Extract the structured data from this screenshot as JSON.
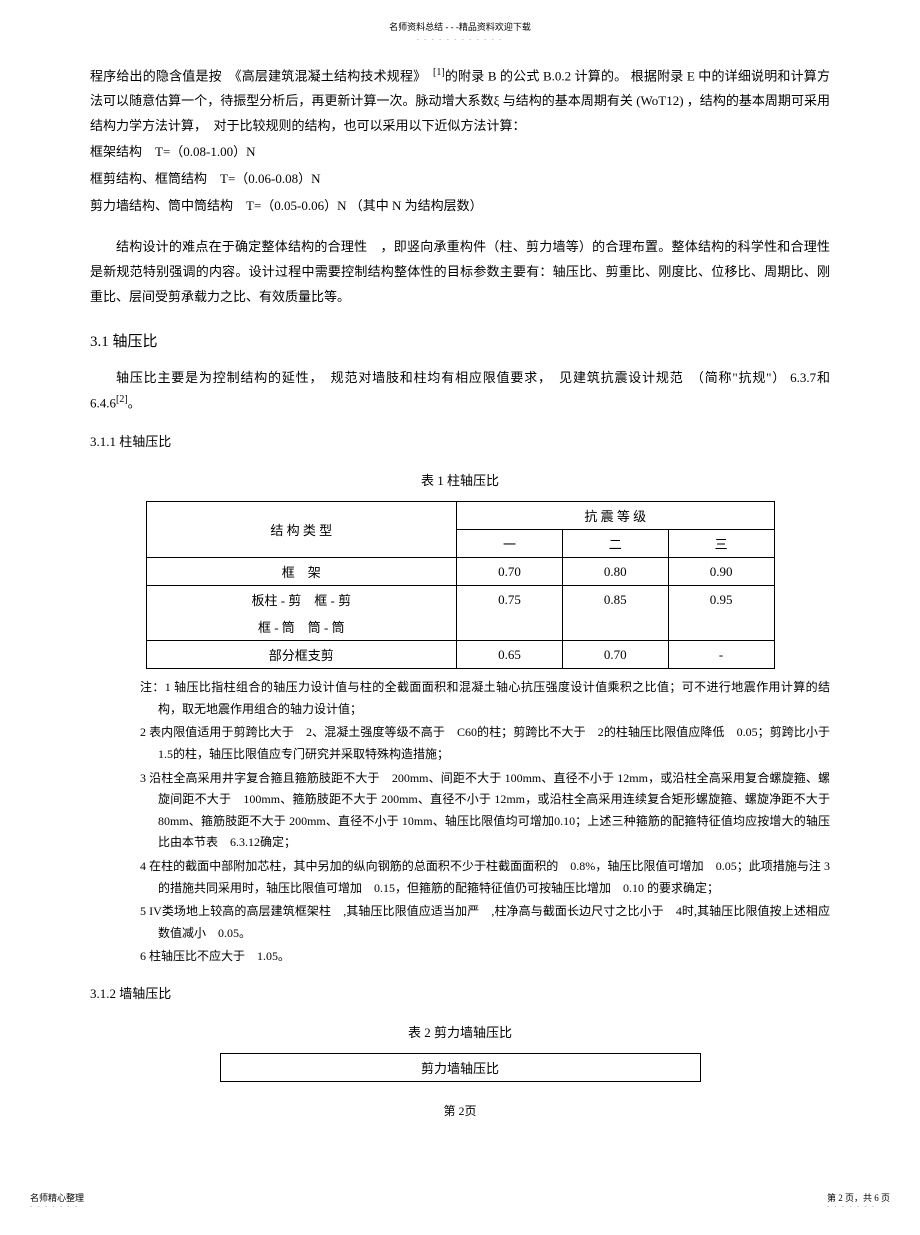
{
  "header": {
    "note": "名师资料总结 - - -精品资料欢迎下载",
    "dots": "- - - - - - - - - - - -"
  },
  "para1": "程序给出的隐含值是按　《高层建筑混凝土结构技术规程》　",
  "para1_sup": "[1]",
  "para1_cont": "的附录 B 的公式 B.0.2 计算的。 根据附录 E 中的详细说明和计算方法可以随意估算一个，待振型分析后，再更新计算一次。脉动增大系数ξ 与结构的基本周期有关 (WoT12) ，结构的基本周期可采用结构力学方法计算，　对于比较规则的结构，也可以采用以下近似方法计算：",
  "formula1": "框架结构　T=（0.08-1.00）N",
  "formula2": "框剪结构、框筒结构　T=（0.06-0.08）N",
  "formula3": "剪力墙结构、筒中筒结构　T=（0.05-0.06）N （其中 N 为结构层数）",
  "para2": "结构设计的难点在于确定整体结构的合理性　，即竖向承重构件（柱、剪力墙等）的合理布置。整体结构的科学性和合理性是新规范特别强调的内容。设计过程中需要控制结构整体性的目标参数主要有：轴压比、剪重比、刚度比、位移比、周期比、刚重比、层间受剪承载力之比、有效质量比等。",
  "section31": "3.1 轴压比",
  "para3a": "轴压比主要是为控制结构的延性，　规范对墙肢和柱均有相应限值要求，　见建筑抗震设计规范　（简称\"抗规\"） 6.3.7和6.4.6",
  "para3_sup": "[2]",
  "para3b": "。",
  "sub311": "3.1.1 柱轴压比",
  "table1": {
    "caption": "表 1 柱轴压比",
    "header1": "结 构 类 型",
    "header2": "抗 震 等 级",
    "col1": "一",
    "col2": "二",
    "col3": "三",
    "rows": [
      {
        "type": "框　架",
        "v1": "0.70",
        "v2": "0.80",
        "v3": "0.90"
      },
      {
        "type": "板柱 - 剪　框 - 剪",
        "v1": "0.75",
        "v2": "0.85",
        "v3": "0.95"
      },
      {
        "type": "框 - 筒　筒 - 筒",
        "v1": "",
        "v2": "",
        "v3": ""
      },
      {
        "type": "部分框支剪",
        "v1": "0.65",
        "v2": "0.70",
        "v3": "-"
      }
    ]
  },
  "notes": {
    "prefix": "注：",
    "n1": "1 轴压比指柱组合的轴压力设计值与柱的全截面面积和混凝土轴心抗压强度设计值乘积之比值；可不进行地震作用计算的结构，取无地震作用组合的轴力设计值；",
    "n2": "2 表内限值适用于剪跨比大于　2、混凝土强度等级不高于　C60的柱；剪跨比不大于　2的柱轴压比限值应降低　0.05；剪跨比小于 1.5的柱，轴压比限值应专门研究并采取特殊构造措施；",
    "n3": "3 沿柱全高采用井字复合箍且箍筋肢距不大于　200mm、间距不大于 100mm、直径不小于 12mm，或沿柱全高采用复合螺旋箍、螺旋间距不大于　100mm、箍筋肢距不大于 200mm、直径不小于 12mm，或沿柱全高采用连续复合矩形螺旋箍、螺旋净距不大于　80mm、箍筋肢距不大于 200mm、直径不小于 10mm、轴压比限值均可增加0.10；上述三种箍筋的配箍特征值均应按增大的轴压比由本节表　6.3.12确定；",
    "n4": "4 在柱的截面中部附加芯柱，其中另加的纵向钢筋的总面积不少于柱截面面积的　0.8%，轴压比限值可增加　0.05；此项措施与注 3的措施共同采用时，轴压比限值可增加　0.15，但箍筋的配箍特征值仍可按轴压比增加　0.10 的要求确定；",
    "n5": "5 IV类场地上较高的高层建筑框架柱　,其轴压比限值应适当加严　,柱净高与截面长边尺寸之比小于　4时,其轴压比限值按上述相应数值减小　0.05。",
    "n6": "6 柱轴压比不应大于　1.05。"
  },
  "sub312": "3.1.2 墙轴压比",
  "table2": {
    "caption": "表 2 剪力墙轴压比",
    "header": "剪力墙轴压比"
  },
  "pagenum": "第 2页",
  "footer": {
    "left": "名师精心整理",
    "right": "第 2 页，共 6 页",
    "dots": "- - - - - - -"
  }
}
